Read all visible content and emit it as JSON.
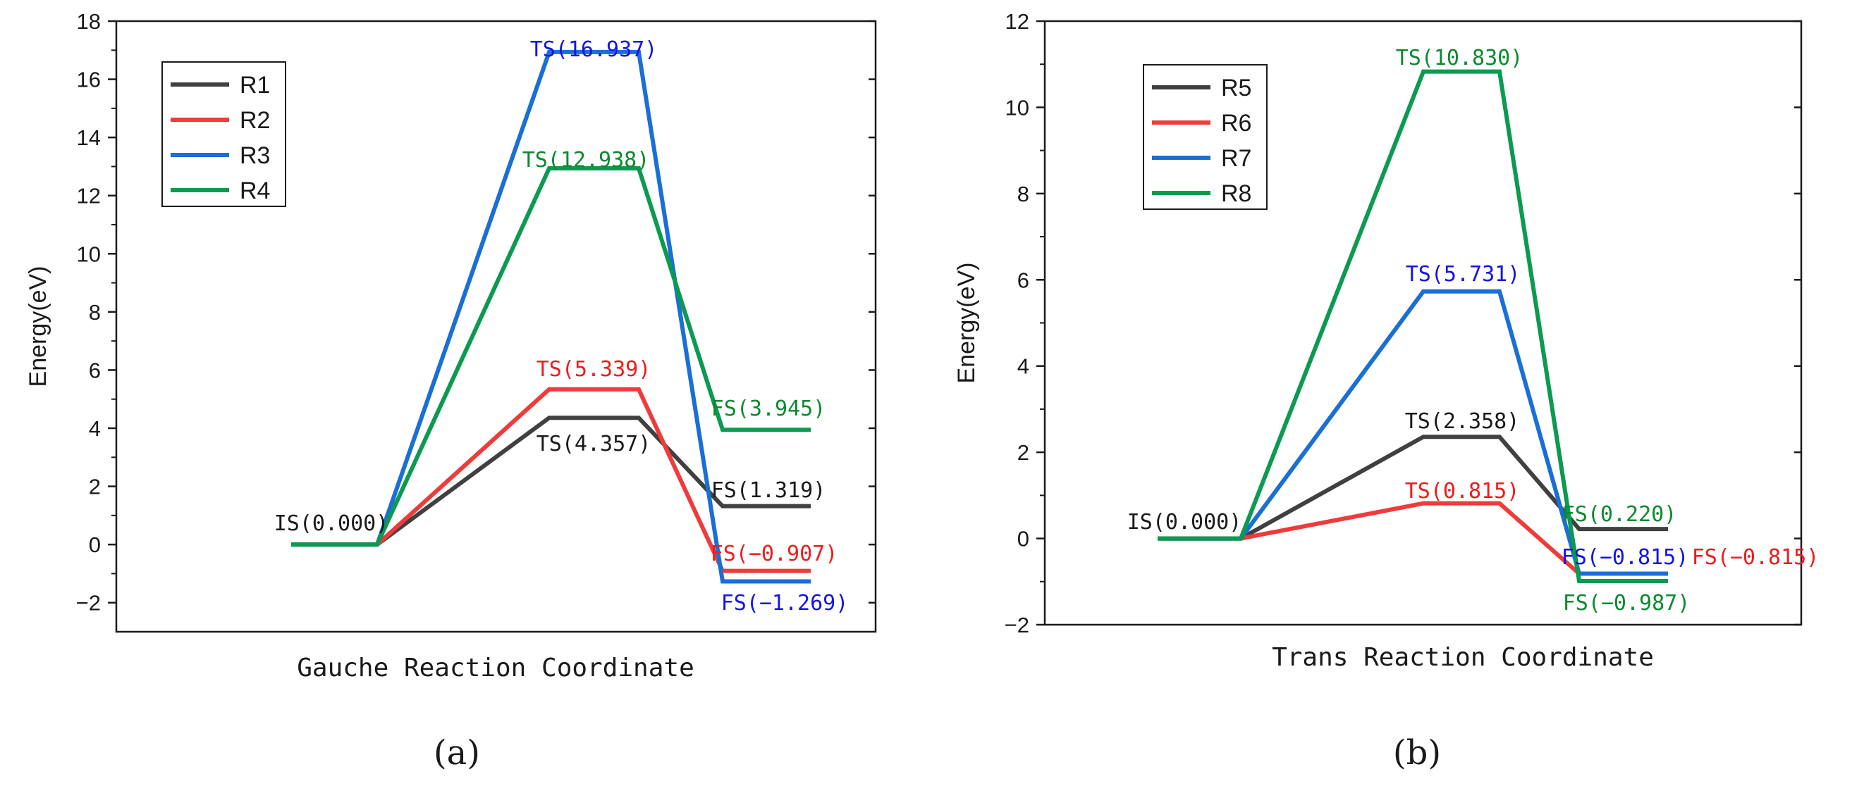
{
  "chart_data": [
    {
      "type": "line",
      "panel_label": "(a)",
      "xlabel": "Gauche Reaction Coordinate",
      "ylabel": "Energy(eV)",
      "ylim": [
        -3,
        18
      ],
      "yticks": [
        -2,
        0,
        2,
        4,
        6,
        8,
        10,
        12,
        14,
        16,
        18
      ],
      "ytick_labels": [
        "−2",
        "0",
        "2",
        "4",
        "6",
        "8",
        "10",
        "12",
        "14",
        "16",
        "18"
      ],
      "stages": [
        "IS",
        "TS",
        "FS"
      ],
      "legend_position": "top-left",
      "series": [
        {
          "name": "R1",
          "color": "#404040",
          "values": [
            0.0,
            4.357,
            1.319
          ]
        },
        {
          "name": "R2",
          "color": "#ef3b3b",
          "values": [
            0.0,
            5.339,
            -0.907
          ]
        },
        {
          "name": "R3",
          "color": "#1a6fd6",
          "values": [
            0.0,
            16.937,
            -1.269
          ]
        },
        {
          "name": "R4",
          "color": "#0c9a50",
          "values": [
            0.0,
            12.938,
            3.945
          ]
        }
      ],
      "annotations": [
        {
          "text": "IS(0.000)",
          "color": "#1a1a1a"
        },
        {
          "text": "TS(16.937)",
          "color": "#1414e6"
        },
        {
          "text": "TS(12.938)",
          "color": "#0b8a2e"
        },
        {
          "text": "TS(5.339)",
          "color": "#ee1c1c"
        },
        {
          "text": "TS(4.357)",
          "color": "#1a1a1a"
        },
        {
          "text": "FS(3.945)",
          "color": "#0b8a2e"
        },
        {
          "text": "FS(1.319)",
          "color": "#1a1a1a"
        },
        {
          "text": "FS(−0.907)",
          "color": "#ee1c1c"
        },
        {
          "text": "FS(−1.269)",
          "color": "#1414e6"
        }
      ]
    },
    {
      "type": "line",
      "panel_label": "(b)",
      "xlabel": "Trans Reaction Coordinate",
      "ylabel": "Energy(eV)",
      "ylim": [
        -2,
        12
      ],
      "yticks": [
        -2,
        0,
        2,
        4,
        6,
        8,
        10,
        12
      ],
      "ytick_labels": [
        "−2",
        "0",
        "2",
        "4",
        "6",
        "8",
        "10",
        "12"
      ],
      "stages": [
        "IS",
        "TS",
        "FS"
      ],
      "legend_position": "top-left",
      "series": [
        {
          "name": "R5",
          "color": "#404040",
          "values": [
            0.0,
            2.358,
            0.22
          ]
        },
        {
          "name": "R6",
          "color": "#ef3b3b",
          "values": [
            0.0,
            0.815,
            -0.815
          ]
        },
        {
          "name": "R7",
          "color": "#1a6fd6",
          "values": [
            0.0,
            5.731,
            -0.815
          ]
        },
        {
          "name": "R8",
          "color": "#0c9a50",
          "values": [
            0.0,
            10.83,
            -0.987
          ]
        }
      ],
      "annotations": [
        {
          "text": "IS(0.000)",
          "color": "#1a1a1a"
        },
        {
          "text": "TS(10.830)",
          "color": "#0b8a2e"
        },
        {
          "text": "TS(5.731)",
          "color": "#1414e6"
        },
        {
          "text": "TS(2.358)",
          "color": "#1a1a1a"
        },
        {
          "text": "TS(0.815)",
          "color": "#ee1c1c"
        },
        {
          "text": "FS(0.220)",
          "color": "#0b8a2e"
        },
        {
          "text": "FS(−0.815)",
          "color": "#1414e6"
        },
        {
          "text": "FS(−0.815)",
          "color": "#ee1c1c"
        },
        {
          "text": "FS(−0.987)",
          "color": "#0b8a2e"
        }
      ]
    }
  ]
}
